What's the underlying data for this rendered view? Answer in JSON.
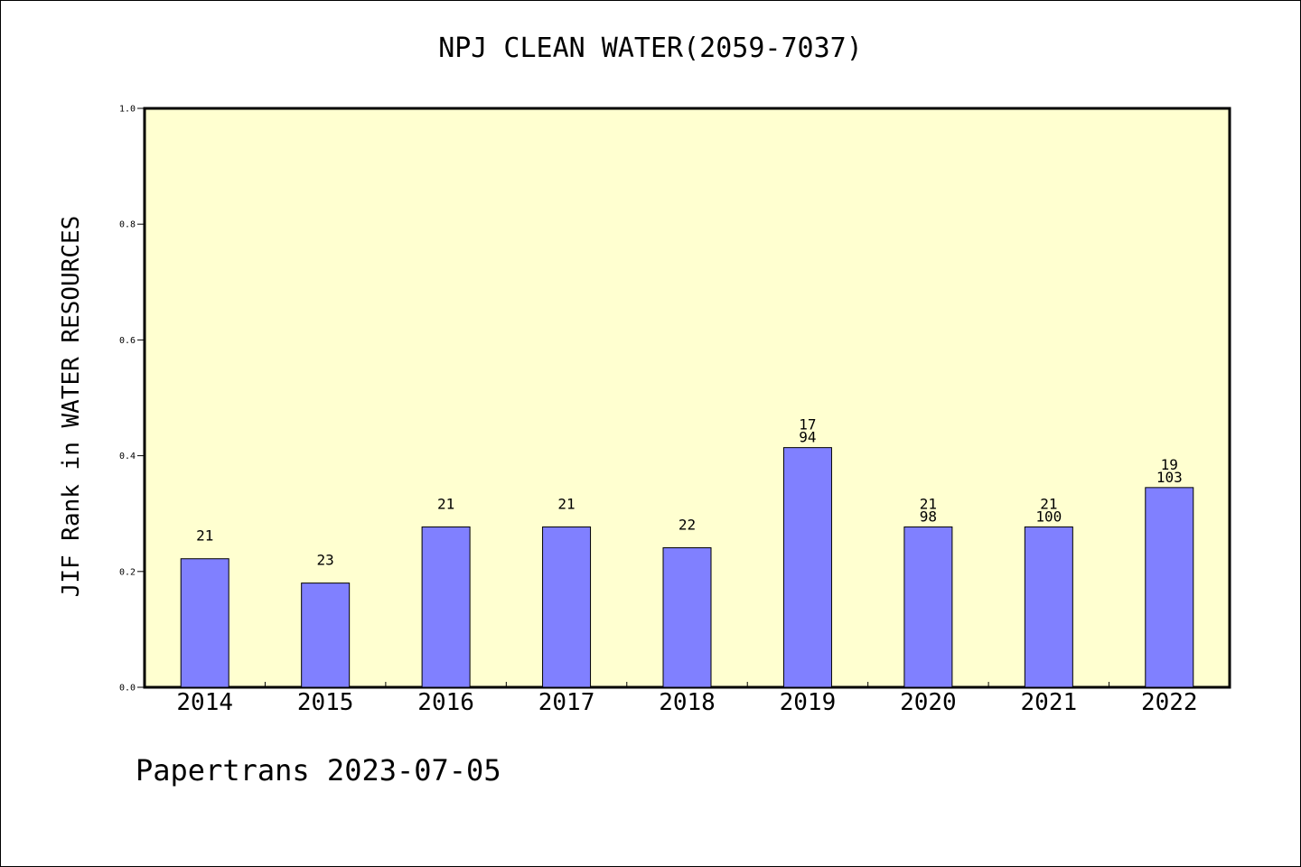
{
  "chart_data": {
    "type": "bar",
    "title": "NPJ CLEAN WATER(2059-7037)",
    "xlabel": "",
    "ylabel": "JIF Rank in WATER RESOURCES",
    "ylim": [
      0.0,
      1.0
    ],
    "yticks": [
      "0.0",
      "0.2",
      "0.4",
      "0.6",
      "0.8",
      "1.0"
    ],
    "categories": [
      "2014",
      "2015",
      "2016",
      "2017",
      "2018",
      "2019",
      "2020",
      "2021",
      "2022"
    ],
    "values": [
      0.222,
      0.18,
      0.277,
      0.277,
      0.241,
      0.414,
      0.277,
      0.277,
      0.345
    ],
    "rank_labels": [
      "21",
      "23",
      "21",
      "21",
      "22",
      "17",
      "21",
      "21",
      "19"
    ],
    "total_labels": [
      "",
      "",
      "",
      "",
      "",
      "94",
      "98",
      "100",
      "103"
    ],
    "grid": false,
    "colors": {
      "plot_background": "#ffffd0",
      "bar_fill": "#8080ff",
      "bar_stroke": "#000000"
    }
  },
  "footer": {
    "note": "Papertrans 2023-07-05"
  }
}
